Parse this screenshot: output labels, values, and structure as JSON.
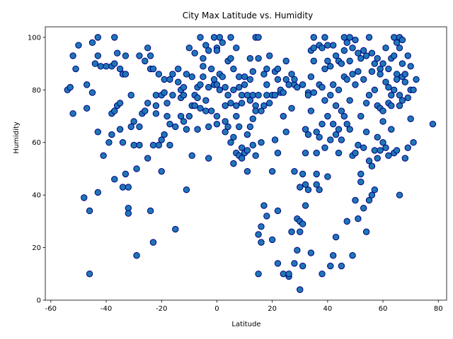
{
  "chart_data": {
    "type": "scatter",
    "title": "City Max Latitude vs. Humidity",
    "xlabel": "Latitude",
    "ylabel": "Humidity",
    "xlim": [
      -62,
      83
    ],
    "ylim": [
      0,
      104
    ],
    "xticks": [
      -60,
      -40,
      -20,
      0,
      20,
      40,
      60,
      80
    ],
    "yticks": [
      0,
      20,
      40,
      60,
      80,
      100
    ],
    "grid": false,
    "marker_face_color": "#1f77b4",
    "marker_edge_color": "#000080",
    "points": [
      [
        -54,
        80
      ],
      [
        -53,
        81
      ],
      [
        -52,
        93
      ],
      [
        -52,
        71
      ],
      [
        -51,
        88
      ],
      [
        -50,
        97
      ],
      [
        -48,
        39
      ],
      [
        -47,
        73
      ],
      [
        -47,
        82
      ],
      [
        -46,
        34
      ],
      [
        -46,
        10
      ],
      [
        -45,
        98
      ],
      [
        -45,
        79
      ],
      [
        -44,
        90
      ],
      [
        -43,
        100
      ],
      [
        -43,
        93
      ],
      [
        -43,
        64
      ],
      [
        -43,
        41
      ],
      [
        -42,
        89
      ],
      [
        -41,
        55
      ],
      [
        -40,
        89
      ],
      [
        -39,
        60
      ],
      [
        -38,
        71
      ],
      [
        -38,
        63
      ],
      [
        -38,
        89
      ],
      [
        -37,
        90
      ],
      [
        -37,
        46
      ],
      [
        -37,
        100
      ],
      [
        -37,
        72
      ],
      [
        -36,
        94
      ],
      [
        -36,
        74
      ],
      [
        -35,
        88
      ],
      [
        -35,
        65
      ],
      [
        -35,
        75
      ],
      [
        -34,
        86
      ],
      [
        -34,
        43
      ],
      [
        -34,
        60
      ],
      [
        -33,
        48
      ],
      [
        -33,
        93
      ],
      [
        -33,
        86
      ],
      [
        -32,
        43
      ],
      [
        -32,
        35
      ],
      [
        -32,
        33
      ],
      [
        -31,
        78
      ],
      [
        -31,
        66
      ],
      [
        -30,
        59
      ],
      [
        -30,
        68
      ],
      [
        -29,
        17
      ],
      [
        -29,
        50
      ],
      [
        -28,
        59
      ],
      [
        -28,
        93
      ],
      [
        -28,
        66
      ],
      [
        -27,
        71
      ],
      [
        -26,
        72
      ],
      [
        -26,
        91
      ],
      [
        -25,
        75
      ],
      [
        -25,
        96
      ],
      [
        -25,
        54
      ],
      [
        -24,
        93
      ],
      [
        -24,
        88
      ],
      [
        -24,
        34
      ],
      [
        -23,
        88
      ],
      [
        -23,
        59
      ],
      [
        -23,
        22
      ],
      [
        -22,
        78
      ],
      [
        -22,
        71
      ],
      [
        -22,
        74
      ],
      [
        -21,
        86
      ],
      [
        -21,
        59
      ],
      [
        -20,
        78
      ],
      [
        -20,
        61
      ],
      [
        -20,
        49
      ],
      [
        -19,
        79
      ],
      [
        -19,
        84
      ],
      [
        -19,
        63
      ],
      [
        -18,
        75
      ],
      [
        -18,
        70
      ],
      [
        -17,
        84
      ],
      [
        -17,
        67
      ],
      [
        -17,
        59
      ],
      [
        -16,
        86
      ],
      [
        -16,
        78
      ],
      [
        -15,
        66
      ],
      [
        -15,
        27
      ],
      [
        -14,
        88
      ],
      [
        -14,
        83
      ],
      [
        -13,
        80
      ],
      [
        -13,
        70
      ],
      [
        -13,
        77
      ],
      [
        -12,
        78
      ],
      [
        -12,
        68
      ],
      [
        -12,
        81
      ],
      [
        -11,
        86
      ],
      [
        -11,
        42
      ],
      [
        -11,
        65
      ],
      [
        -10,
        96
      ],
      [
        -10,
        70
      ],
      [
        -9,
        55
      ],
      [
        -9,
        74
      ],
      [
        -9,
        85
      ],
      [
        -8,
        78
      ],
      [
        -8,
        94
      ],
      [
        -8,
        74
      ],
      [
        -7,
        77
      ],
      [
        -7,
        65
      ],
      [
        -7,
        81
      ],
      [
        -6,
        100
      ],
      [
        -6,
        73
      ],
      [
        -6,
        82
      ],
      [
        -5,
        92
      ],
      [
        -5,
        89
      ],
      [
        -5,
        85
      ],
      [
        -4,
        97
      ],
      [
        -4,
        76
      ],
      [
        -4,
        72
      ],
      [
        -3,
        95
      ],
      [
        -3,
        81
      ],
      [
        -3,
        54
      ],
      [
        -3,
        66
      ],
      [
        -2,
        72
      ],
      [
        -2,
        88
      ],
      [
        -1,
        82
      ],
      [
        -1,
        100
      ],
      [
        -1,
        84
      ],
      [
        0,
        96
      ],
      [
        0,
        95
      ],
      [
        0,
        82
      ],
      [
        0,
        67
      ],
      [
        0,
        70
      ],
      [
        1,
        100
      ],
      [
        1,
        86
      ],
      [
        1,
        80
      ],
      [
        2,
        98
      ],
      [
        2,
        85
      ],
      [
        3,
        74
      ],
      [
        3,
        68
      ],
      [
        3,
        64
      ],
      [
        3,
        81
      ],
      [
        4,
        91
      ],
      [
        4,
        78
      ],
      [
        4,
        66
      ],
      [
        5,
        92
      ],
      [
        5,
        100
      ],
      [
        5,
        60
      ],
      [
        5,
        75
      ],
      [
        6,
        80
      ],
      [
        6,
        52
      ],
      [
        6,
        88
      ],
      [
        6,
        62
      ],
      [
        7,
        96
      ],
      [
        7,
        74
      ],
      [
        7,
        70
      ],
      [
        7,
        56
      ],
      [
        8,
        85
      ],
      [
        8,
        81
      ],
      [
        8,
        55
      ],
      [
        8,
        66
      ],
      [
        9,
        78
      ],
      [
        9,
        54
      ],
      [
        9,
        75
      ],
      [
        9,
        58
      ],
      [
        10,
        82
      ],
      [
        10,
        56
      ],
      [
        10,
        85
      ],
      [
        11,
        57
      ],
      [
        11,
        63
      ],
      [
        11,
        49
      ],
      [
        11,
        78
      ],
      [
        12,
        76
      ],
      [
        12,
        84
      ],
      [
        12,
        66
      ],
      [
        12,
        92
      ],
      [
        13,
        78
      ],
      [
        13,
        69
      ],
      [
        13,
        87
      ],
      [
        13,
        59
      ],
      [
        14,
        100
      ],
      [
        14,
        74
      ],
      [
        14,
        72
      ],
      [
        14,
        55
      ],
      [
        15,
        100
      ],
      [
        15,
        92
      ],
      [
        15,
        78
      ],
      [
        15,
        10
      ],
      [
        15,
        25
      ],
      [
        16,
        72
      ],
      [
        16,
        60
      ],
      [
        16,
        22
      ],
      [
        16,
        28
      ],
      [
        17,
        86
      ],
      [
        17,
        74
      ],
      [
        17,
        36
      ],
      [
        18,
        78
      ],
      [
        18,
        88
      ],
      [
        18,
        82
      ],
      [
        18,
        32
      ],
      [
        19,
        93
      ],
      [
        19,
        75
      ],
      [
        20,
        78
      ],
      [
        20,
        23
      ],
      [
        20,
        49
      ],
      [
        21,
        78
      ],
      [
        21,
        61
      ],
      [
        21,
        87
      ],
      [
        22,
        84
      ],
      [
        22,
        88
      ],
      [
        22,
        56
      ],
      [
        22,
        34
      ],
      [
        22,
        14
      ],
      [
        23,
        79
      ],
      [
        23,
        80
      ],
      [
        24,
        79
      ],
      [
        24,
        70
      ],
      [
        24,
        10
      ],
      [
        25,
        84
      ],
      [
        25,
        64
      ],
      [
        25,
        91
      ],
      [
        26,
        82
      ],
      [
        26,
        9
      ],
      [
        26,
        10
      ],
      [
        27,
        86
      ],
      [
        27,
        73
      ],
      [
        27,
        26
      ],
      [
        28,
        82
      ],
      [
        28,
        84
      ],
      [
        28,
        49
      ],
      [
        28,
        14
      ],
      [
        29,
        81
      ],
      [
        29,
        31
      ],
      [
        29,
        19
      ],
      [
        30,
        30
      ],
      [
        30,
        43
      ],
      [
        30,
        26
      ],
      [
        30,
        4
      ],
      [
        31,
        82
      ],
      [
        31,
        48
      ],
      [
        31,
        29
      ],
      [
        31,
        13
      ],
      [
        32,
        56
      ],
      [
        32,
        44
      ],
      [
        32,
        36
      ],
      [
        32,
        65
      ],
      [
        33,
        79
      ],
      [
        33,
        63
      ],
      [
        33,
        78
      ],
      [
        33,
        42
      ],
      [
        34,
        95
      ],
      [
        34,
        85
      ],
      [
        34,
        72
      ],
      [
        34,
        18
      ],
      [
        35,
        100
      ],
      [
        35,
        91
      ],
      [
        35,
        79
      ],
      [
        35,
        96
      ],
      [
        36,
        48
      ],
      [
        36,
        64
      ],
      [
        36,
        56
      ],
      [
        36,
        44
      ],
      [
        37,
        97
      ],
      [
        37,
        82
      ],
      [
        37,
        62
      ],
      [
        37,
        42
      ],
      [
        38,
        96
      ],
      [
        38,
        81
      ],
      [
        38,
        67
      ],
      [
        38,
        10
      ],
      [
        39,
        100
      ],
      [
        39,
        88
      ],
      [
        39,
        58
      ],
      [
        39,
        76
      ],
      [
        40,
        97
      ],
      [
        40,
        91
      ],
      [
        40,
        70
      ],
      [
        40,
        47
      ],
      [
        41,
        89
      ],
      [
        41,
        78
      ],
      [
        41,
        61
      ],
      [
        41,
        13
      ],
      [
        42,
        97
      ],
      [
        42,
        82
      ],
      [
        42,
        67
      ],
      [
        42,
        17
      ],
      [
        43,
        93
      ],
      [
        43,
        74
      ],
      [
        43,
        63
      ],
      [
        43,
        24
      ],
      [
        44,
        91
      ],
      [
        44,
        80
      ],
      [
        44,
        65
      ],
      [
        44,
        56
      ],
      [
        45,
        90
      ],
      [
        45,
        72
      ],
      [
        45,
        61
      ],
      [
        45,
        13
      ],
      [
        46,
        100
      ],
      [
        46,
        95
      ],
      [
        46,
        85
      ],
      [
        46,
        70
      ],
      [
        47,
        98
      ],
      [
        47,
        84
      ],
      [
        47,
        67
      ],
      [
        47,
        30
      ],
      [
        48,
        100
      ],
      [
        48,
        91
      ],
      [
        48,
        76
      ],
      [
        48,
        65
      ],
      [
        49,
        96
      ],
      [
        49,
        86
      ],
      [
        49,
        55
      ],
      [
        49,
        17
      ],
      [
        50,
        99
      ],
      [
        50,
        82
      ],
      [
        50,
        56
      ],
      [
        50,
        38
      ],
      [
        51,
        94
      ],
      [
        51,
        87
      ],
      [
        51,
        59
      ],
      [
        51,
        31
      ],
      [
        52,
        92
      ],
      [
        52,
        70
      ],
      [
        52,
        48
      ],
      [
        52,
        45
      ],
      [
        53,
        95
      ],
      [
        53,
        84
      ],
      [
        53,
        58
      ],
      [
        53,
        35
      ],
      [
        54,
        93
      ],
      [
        54,
        75
      ],
      [
        54,
        64
      ],
      [
        54,
        26
      ],
      [
        55,
        100
      ],
      [
        55,
        78
      ],
      [
        55,
        53
      ],
      [
        55,
        38
      ],
      [
        56,
        94
      ],
      [
        56,
        87
      ],
      [
        56,
        51
      ],
      [
        56,
        40
      ],
      [
        57,
        90
      ],
      [
        57,
        80
      ],
      [
        57,
        57
      ],
      [
        57,
        42
      ],
      [
        58,
        92
      ],
      [
        58,
        74
      ],
      [
        58,
        62
      ],
      [
        58,
        54
      ],
      [
        59,
        88
      ],
      [
        59,
        86
      ],
      [
        59,
        73
      ],
      [
        59,
        57
      ],
      [
        60,
        90
      ],
      [
        60,
        72
      ],
      [
        60,
        60
      ],
      [
        60,
        68
      ],
      [
        61,
        96
      ],
      [
        61,
        83
      ],
      [
        61,
        58
      ],
      [
        62,
        88
      ],
      [
        62,
        81
      ],
      [
        62,
        75
      ],
      [
        62,
        55
      ],
      [
        63,
        92
      ],
      [
        63,
        78
      ],
      [
        63,
        65
      ],
      [
        63,
        74
      ],
      [
        64,
        100
      ],
      [
        64,
        93
      ],
      [
        64,
        80
      ],
      [
        64,
        56
      ],
      [
        65,
        98
      ],
      [
        65,
        86
      ],
      [
        65,
        84
      ],
      [
        65,
        57
      ],
      [
        66,
        100
      ],
      [
        66,
        96
      ],
      [
        66,
        78
      ],
      [
        66,
        74
      ],
      [
        66,
        40
      ],
      [
        67,
        99
      ],
      [
        67,
        90
      ],
      [
        67,
        85
      ],
      [
        67,
        76
      ],
      [
        68,
        86
      ],
      [
        68,
        83
      ],
      [
        68,
        54
      ],
      [
        69,
        93
      ],
      [
        69,
        77
      ],
      [
        69,
        58
      ],
      [
        70,
        89
      ],
      [
        70,
        80
      ],
      [
        70,
        69
      ],
      [
        71,
        80
      ],
      [
        71,
        60
      ],
      [
        72,
        84
      ],
      [
        78,
        67
      ]
    ]
  }
}
